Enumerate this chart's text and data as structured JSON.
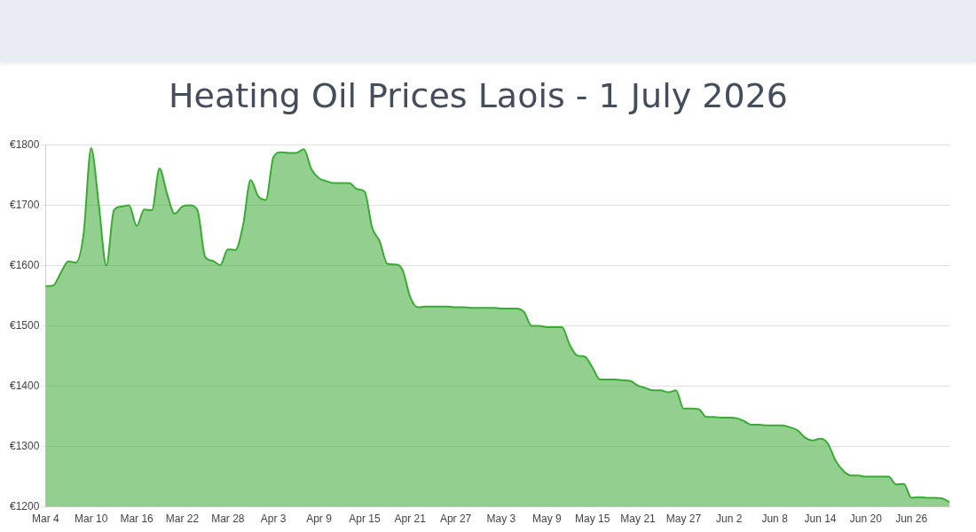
{
  "chart_data": {
    "type": "area",
    "title": "Heating Oil Prices Laois - 1 July 2026",
    "categories": [
      "Mar 4",
      null,
      null,
      null,
      null,
      null,
      "Mar 10",
      null,
      null,
      null,
      null,
      null,
      "Mar 16",
      null,
      null,
      null,
      null,
      null,
      "Mar 22",
      null,
      null,
      null,
      null,
      null,
      "Mar 28",
      null,
      null,
      null,
      null,
      null,
      "Apr 3",
      null,
      null,
      null,
      null,
      null,
      "Apr 9",
      null,
      null,
      null,
      null,
      null,
      "Apr 15",
      null,
      null,
      null,
      null,
      null,
      "Apr 21",
      null,
      null,
      null,
      null,
      null,
      "Apr 27",
      null,
      null,
      null,
      null,
      null,
      "May 3",
      null,
      null,
      null,
      null,
      null,
      "May 9",
      null,
      null,
      null,
      null,
      null,
      "May 15",
      null,
      null,
      null,
      null,
      null,
      "May 21",
      null,
      null,
      null,
      null,
      null,
      "May 27",
      null,
      null,
      null,
      null,
      null,
      "Jun 2",
      null,
      null,
      null,
      null,
      null,
      "Jun 8",
      null,
      null,
      null,
      null,
      null,
      "Jun 14",
      null,
      null,
      null,
      null,
      null,
      "Jun 20",
      null,
      null,
      null,
      null,
      null,
      "Jun 26",
      null,
      null,
      null,
      null,
      null
    ],
    "series": [
      {
        "color": "#3aaa35",
        "values": [
          1566,
          1567,
          1588,
          1607,
          1605,
          1652,
          1795,
          1702,
          1600,
          1692,
          1698,
          1700,
          1666,
          1693,
          1692,
          1761,
          1719,
          1686,
          1698,
          1700,
          1692,
          1615,
          1608,
          1601,
          1627,
          1626,
          1667,
          1742,
          1715,
          1709,
          1780,
          1788,
          1787,
          1787,
          1793,
          1760,
          1745,
          1740,
          1737,
          1737,
          1737,
          1727,
          1723,
          1663,
          1640,
          1603,
          1602,
          1593,
          1548,
          1531,
          1532,
          1532,
          1532,
          1532,
          1531,
          1531,
          1530,
          1530,
          1530,
          1530,
          1529,
          1529,
          1529,
          1523,
          1500,
          1500,
          1498,
          1498,
          1498,
          1469,
          1451,
          1449,
          1431,
          1411,
          1411,
          1411,
          1410,
          1409,
          1401,
          1397,
          1393,
          1393,
          1390,
          1393,
          1363,
          1363,
          1362,
          1349,
          1349,
          1348,
          1348,
          1347,
          1342,
          1336,
          1336,
          1335,
          1335,
          1335,
          1332,
          1327,
          1315,
          1310,
          1313,
          1305,
          1277,
          1260,
          1252,
          1252,
          1250,
          1250,
          1250,
          1250,
          1237,
          1238,
          1215,
          1216,
          1215,
          1215,
          1214,
          1208
        ]
      }
    ],
    "ylim": [
      1200,
      1800
    ],
    "yticks": [
      {
        "value": 1200,
        "label": "€1200"
      },
      {
        "value": 1300,
        "label": "€1300"
      },
      {
        "value": 1400,
        "label": "€1400"
      },
      {
        "value": 1500,
        "label": "€1500"
      },
      {
        "value": 1600,
        "label": "€1600"
      },
      {
        "value": 1700,
        "label": "€1700"
      },
      {
        "value": 1800,
        "label": "€1800"
      }
    ],
    "grid": "y",
    "legend": false
  }
}
